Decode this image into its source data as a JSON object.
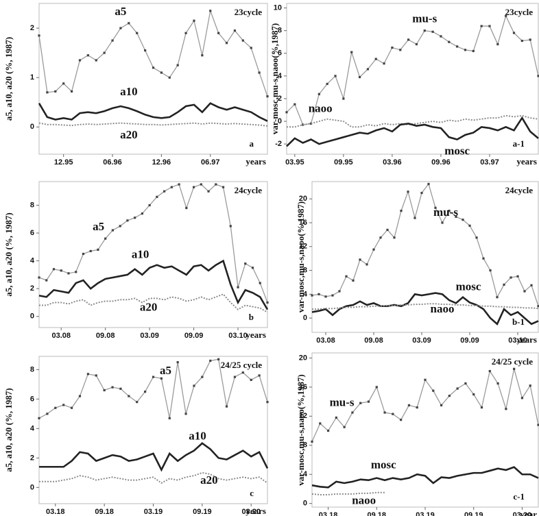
{
  "chart_data": [
    {
      "type": "line",
      "title": "23cycle",
      "panel": "a",
      "ylabel": "a5, a10, a20 (%, 1987)",
      "xlabel": "years",
      "xlim": [
        0,
        28
      ],
      "xticks": [
        {
          "value": 3,
          "label": "12.95"
        },
        {
          "value": 9,
          "label": "06.96"
        },
        {
          "value": 15,
          "label": "12.96"
        },
        {
          "value": 21,
          "label": "06.97"
        }
      ],
      "ylim": [
        -0.55,
        2.5
      ],
      "yticks": [
        0,
        1,
        2
      ],
      "series": [
        {
          "name": "a5",
          "color": "#9a9a9a",
          "style": "markers",
          "values": [
            1.85,
            0.7,
            0.72,
            0.88,
            0.72,
            1.35,
            1.45,
            1.35,
            1.5,
            1.75,
            2.0,
            2.1,
            1.9,
            1.55,
            1.2,
            1.1,
            1.0,
            1.25,
            1.9,
            2.15,
            1.45,
            2.35,
            1.9,
            1.7,
            1.95,
            1.75,
            1.6,
            1.1,
            0.62
          ]
        },
        {
          "name": "a10",
          "color": "#222222",
          "style": "thick",
          "values": [
            0.48,
            0.2,
            0.15,
            0.18,
            0.15,
            0.28,
            0.3,
            0.28,
            0.32,
            0.38,
            0.42,
            0.38,
            0.32,
            0.25,
            0.2,
            0.18,
            0.2,
            0.3,
            0.42,
            0.45,
            0.3,
            0.48,
            0.4,
            0.35,
            0.4,
            0.35,
            0.3,
            0.2,
            0.12
          ]
        },
        {
          "name": "a20",
          "color": "#8a8a8a",
          "style": "dotted",
          "values": [
            0.08,
            0.05,
            0.05,
            0.04,
            0.03,
            0.05,
            0.06,
            0.05,
            0.06,
            0.07,
            0.08,
            0.07,
            0.06,
            0.05,
            0.05,
            0.04,
            0.05,
            0.06,
            0.07,
            0.08,
            0.06,
            0.08,
            0.07,
            0.06,
            0.07,
            0.06,
            0.05,
            0.04,
            0.02
          ]
        }
      ]
    },
    {
      "type": "line",
      "title": "23cycle",
      "panel": "a-1",
      "ylabel": "var-mosc,mu-s,naoo(%,1987)",
      "xlabel": "years",
      "xlim": [
        0,
        31
      ],
      "xticks": [
        {
          "value": 1,
          "label": "03.95"
        },
        {
          "value": 7,
          "label": "09.95"
        },
        {
          "value": 13,
          "label": "03.96"
        },
        {
          "value": 19,
          "label": "09.96"
        },
        {
          "value": 25,
          "label": "03.97"
        }
      ],
      "ylim": [
        -2.9,
        10.4
      ],
      "yticks": [
        -2,
        0,
        2,
        4,
        6,
        8,
        10
      ],
      "series": [
        {
          "name": "mu-s",
          "color": "#9a9a9a",
          "style": "markers",
          "values": [
            0.8,
            1.5,
            -0.3,
            -0.2,
            2.4,
            3.3,
            4.0,
            2.0,
            6.1,
            3.9,
            4.6,
            5.5,
            5.1,
            6.5,
            6.3,
            7.2,
            6.8,
            8.0,
            7.9,
            7.5,
            7.0,
            6.6,
            6.3,
            6.2,
            8.4,
            8.4,
            6.8,
            9.3,
            7.8,
            7.1,
            7.2,
            4.0
          ]
        },
        {
          "name": "naoo",
          "color": "#8a8a8a",
          "style": "dotted",
          "values": [
            -0.5,
            -0.5,
            -0.3,
            -0.2,
            0,
            0.2,
            0.1,
            0,
            -0.5,
            -0.5,
            -0.3,
            -0.4,
            -0.2,
            -0.3,
            -0.2,
            -0.3,
            -0.2,
            -0.1,
            0,
            -0.1,
            0.1,
            0,
            0.2,
            0.1,
            0.2,
            0.3,
            0.3,
            0.5,
            0.4,
            0.5,
            0.3,
            0.2
          ]
        },
        {
          "name": "mosc",
          "color": "#222222",
          "style": "thick",
          "values": [
            -2.2,
            -1.5,
            -1.9,
            -1.6,
            -2.0,
            -1.8,
            -1.6,
            -1.4,
            -1.2,
            -1.0,
            -1.1,
            -0.8,
            -0.6,
            -0.9,
            -0.3,
            -0.2,
            -0.4,
            -0.3,
            -0.5,
            -0.6,
            -1.4,
            -1.6,
            -1.2,
            -1.0,
            -0.5,
            -0.6,
            -0.8,
            -0.5,
            -0.8,
            0.3,
            -0.9,
            -1.5
          ]
        }
      ]
    },
    {
      "type": "line",
      "title": "24cycle",
      "panel": "b",
      "ylabel": "a5, a10, a20 (%, 1987)",
      "xlabel": "years",
      "xlim": [
        0,
        31
      ],
      "xticks": [
        {
          "value": 3,
          "label": "03.08"
        },
        {
          "value": 9,
          "label": "09.08"
        },
        {
          "value": 15,
          "label": "03.09"
        },
        {
          "value": 21,
          "label": "09.09"
        },
        {
          "value": 27,
          "label": "03.10"
        }
      ],
      "ylim": [
        -0.8,
        9.7
      ],
      "yticks": [
        0,
        2,
        4,
        6,
        8
      ],
      "series": [
        {
          "name": "a5",
          "color": "#9a9a9a",
          "style": "markers",
          "values": [
            2.8,
            2.6,
            3.4,
            3.3,
            3.1,
            3.2,
            4.5,
            4.7,
            4.8,
            5.6,
            6.2,
            6.5,
            6.9,
            7.1,
            7.4,
            8.0,
            8.6,
            9.0,
            9.3,
            9.5,
            7.8,
            9.3,
            9.5,
            9.0,
            9.5,
            9.3,
            6.5,
            2.1,
            3.8,
            3.5,
            2.4,
            1.0
          ]
        },
        {
          "name": "a10",
          "color": "#222222",
          "style": "thick",
          "values": [
            1.5,
            1.4,
            1.9,
            1.8,
            1.7,
            2.4,
            2.6,
            2.0,
            2.4,
            2.7,
            2.8,
            2.9,
            3.0,
            3.4,
            3.0,
            3.5,
            3.7,
            3.5,
            3.6,
            3.3,
            3.0,
            3.6,
            3.7,
            3.3,
            3.7,
            4.0,
            2.3,
            1.0,
            1.9,
            1.7,
            1.4,
            0.5
          ]
        },
        {
          "name": "a20",
          "color": "#8a8a8a",
          "style": "dotted",
          "values": [
            0.8,
            0.8,
            1.0,
            1.0,
            0.9,
            1.1,
            1.2,
            0.8,
            1.0,
            1.1,
            1.1,
            1.2,
            1.2,
            1.3,
            1.0,
            1.3,
            1.3,
            1.2,
            1.4,
            1.3,
            1.1,
            1.2,
            1.4,
            1.2,
            1.4,
            1.6,
            1.0,
            0.5,
            0.8,
            0.7,
            0.6,
            0.3
          ]
        }
      ]
    },
    {
      "type": "line",
      "title": "24cycle",
      "panel": "b-1",
      "ylabel": "var-mosc,mu-s,naoo(%,1987)",
      "xlabel": "years",
      "xlim": [
        0,
        33
      ],
      "xticks": [
        {
          "value": 2,
          "label": "03.08"
        },
        {
          "value": 9,
          "label": "09.08"
        },
        {
          "value": 16,
          "label": "03.09"
        },
        {
          "value": 23,
          "label": "09.09"
        },
        {
          "value": 30,
          "label": "03.10"
        }
      ],
      "ylim": [
        -2.4,
        22.9
      ],
      "yticks": [
        0,
        4,
        8,
        12,
        16,
        20
      ],
      "series": [
        {
          "name": "mu-s",
          "color": "#9a9a9a",
          "style": "markers",
          "values": [
            3.8,
            4.0,
            3.6,
            3.8,
            4.5,
            7.0,
            6.3,
            9.8,
            9.0,
            11.5,
            13.5,
            14.8,
            13.5,
            18.0,
            21.2,
            16.8,
            21.0,
            22.5,
            18.5,
            16.0,
            18.0,
            17.0,
            16.5,
            15.5,
            13.5,
            10.0,
            8.0,
            3.5,
            5.6,
            6.8,
            7.0,
            4.5,
            5.5,
            2.0
          ]
        },
        {
          "name": "mosc",
          "color": "#222222",
          "style": "thick",
          "values": [
            1.0,
            1.2,
            1.5,
            0.5,
            1.5,
            2.0,
            2.2,
            2.8,
            2.2,
            2.5,
            2.0,
            2.0,
            2.2,
            2.0,
            2.5,
            4.0,
            3.8,
            4.0,
            4.2,
            4.0,
            3.0,
            2.5,
            3.5,
            2.6,
            2.2,
            1.5,
            0.0,
            -1.0,
            1.5,
            0.5,
            1.0,
            0.0,
            -1.0,
            -0.5
          ]
        },
        {
          "name": "naoo",
          "color": "#8a8a8a",
          "style": "dotted",
          "values": [
            1.5,
            1.5,
            1.6,
            1.6,
            1.7,
            1.8,
            1.8,
            1.9,
            1.9,
            2.0,
            2.0,
            2.1,
            2.1,
            2.2,
            2.2,
            2.3,
            2.3,
            2.4,
            2.4,
            2.3,
            2.3,
            2.2,
            2.2,
            2.1,
            2.1,
            2.0,
            2.0,
            1.9,
            1.9,
            1.8,
            1.8,
            1.7,
            1.7,
            1.6
          ]
        }
      ]
    },
    {
      "type": "line",
      "title": "24/25 cycle",
      "panel": "c",
      "ylabel": "a5, a10, a20 (%, 1987)",
      "xlabel": "years",
      "xlim": [
        0,
        28
      ],
      "xticks": [
        {
          "value": 2,
          "label": "03.18"
        },
        {
          "value": 8,
          "label": "09.18"
        },
        {
          "value": 14,
          "label": "03.19"
        },
        {
          "value": 20,
          "label": "09.19"
        },
        {
          "value": 26,
          "label": "03.20"
        }
      ],
      "ylim": [
        -1.1,
        8.9
      ],
      "yticks": [
        0,
        2,
        4,
        6,
        8
      ],
      "series": [
        {
          "name": "a5",
          "color": "#9a9a9a",
          "style": "markers",
          "values": [
            4.7,
            5.0,
            5.4,
            5.6,
            5.4,
            6.2,
            7.7,
            7.6,
            6.6,
            6.8,
            6.7,
            6.2,
            5.8,
            6.5,
            7.5,
            7.4,
            4.7,
            8.5,
            5.0,
            6.9,
            7.5,
            8.6,
            8.7,
            5.5,
            7.5,
            7.8,
            7.3,
            7.6,
            5.8
          ]
        },
        {
          "name": "a10",
          "color": "#222222",
          "style": "thick",
          "values": [
            1.4,
            1.4,
            1.4,
            1.4,
            1.8,
            2.4,
            2.3,
            1.8,
            2.0,
            2.2,
            2.1,
            1.8,
            1.9,
            2.1,
            2.3,
            1.2,
            2.3,
            1.8,
            2.2,
            2.5,
            3.0,
            2.6,
            2.0,
            1.9,
            2.2,
            2.5,
            2.1,
            2.4,
            1.3
          ]
        },
        {
          "name": "a20",
          "color": "#8a8a8a",
          "style": "dotted",
          "values": [
            0.4,
            0.4,
            0.4,
            0.5,
            0.6,
            0.8,
            0.7,
            0.5,
            0.6,
            0.7,
            0.6,
            0.5,
            0.5,
            0.6,
            0.7,
            0.3,
            0.6,
            0.5,
            0.7,
            0.8,
            1.0,
            0.9,
            0.6,
            0.5,
            0.6,
            0.7,
            0.6,
            0.7,
            0.3
          ]
        }
      ]
    },
    {
      "type": "line",
      "title": "24/25 cycle",
      "panel": "c-1",
      "ylabel": "var-mosc,mu-s,naoo(%,1987)",
      "xlabel": "year",
      "xlim": [
        0,
        28
      ],
      "xticks": [
        {
          "value": 2,
          "label": "03.18"
        },
        {
          "value": 8,
          "label": "09.18"
        },
        {
          "value": 14,
          "label": "03.19"
        },
        {
          "value": 20,
          "label": "09.19"
        },
        {
          "value": 26,
          "label": "03.20"
        }
      ],
      "ylim": [
        -0.5,
        20.7
      ],
      "yticks": [
        0,
        4,
        8,
        12,
        16,
        20
      ],
      "series": [
        {
          "name": "mu-s",
          "color": "#9a9a9a",
          "style": "markers",
          "values": [
            8.5,
            11.0,
            10.0,
            11.8,
            10.5,
            12.5,
            13.8,
            14.0,
            16.0,
            12.5,
            12.3,
            11.5,
            13.5,
            13.2,
            17.0,
            15.5,
            13.5,
            14.8,
            15.8,
            16.5,
            15.0,
            13.2,
            18.2,
            16.5,
            13.0,
            18.5,
            14.5,
            16.2,
            10.8
          ]
        },
        {
          "name": "mosc",
          "color": "#222222",
          "style": "thick",
          "values": [
            2.5,
            2.3,
            2.2,
            3.0,
            2.8,
            3.0,
            3.3,
            3.2,
            3.5,
            3.2,
            3.5,
            3.3,
            3.5,
            4.0,
            3.8,
            2.8,
            3.6,
            3.5,
            3.8,
            4.0,
            4.2,
            4.2,
            4.5,
            4.8,
            4.6,
            5.0,
            4.0,
            4.0,
            3.5
          ]
        },
        {
          "name": "naoo",
          "color": "#8a8a8a",
          "style": "dotted",
          "values": [
            1.3,
            1.2,
            1.2,
            1.3,
            1.3,
            1.3,
            1.4,
            1.4,
            1.5,
            1.5,
            null,
            null,
            null,
            null,
            null,
            null,
            null,
            null,
            null,
            null,
            null,
            null,
            null,
            null,
            null,
            null,
            null,
            null,
            null
          ]
        }
      ]
    }
  ]
}
